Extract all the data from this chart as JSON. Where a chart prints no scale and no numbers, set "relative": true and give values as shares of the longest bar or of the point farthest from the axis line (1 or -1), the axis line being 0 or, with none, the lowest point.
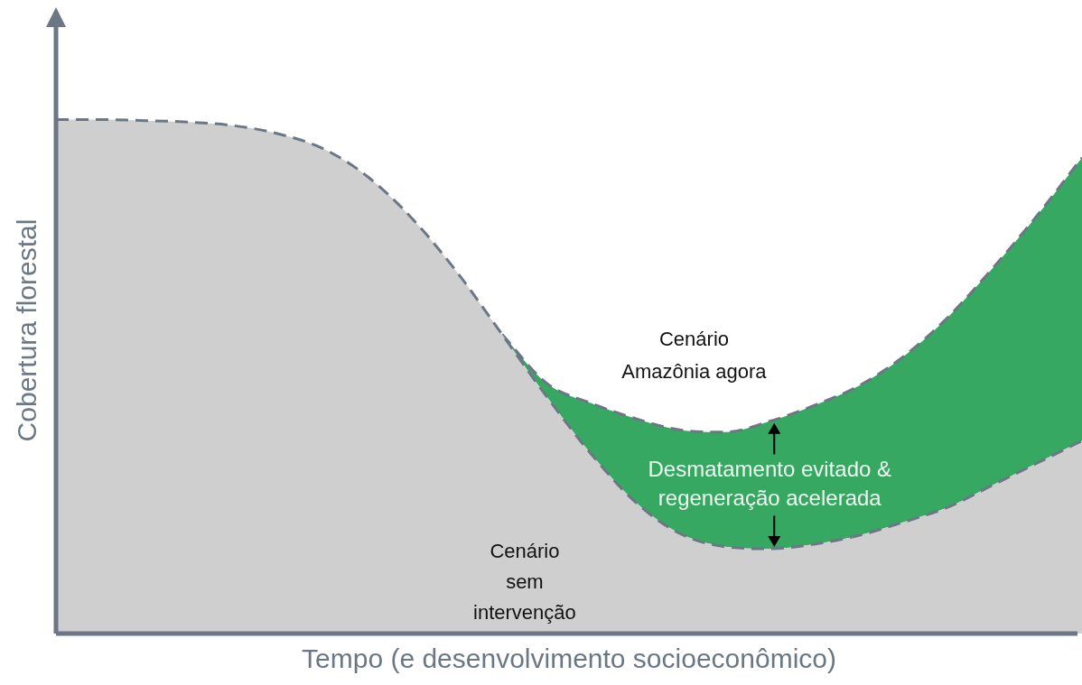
{
  "chart_data": {
    "type": "area",
    "relative": true,
    "xlabel": "Tempo (e desenvolvimento socioeconômico)",
    "ylabel": "Cobertura florestal",
    "categories": [
      null,
      null,
      null,
      null,
      null,
      null,
      null,
      null,
      null,
      null,
      null,
      null,
      null,
      null,
      null,
      null,
      null,
      null,
      null,
      null,
      null,
      null,
      null,
      null
    ],
    "series": [
      {
        "name": "Cenário sem intervenção",
        "type": "area",
        "color": "#cfcfcf",
        "values": [
          1,
          1,
          0.998,
          0.995,
          0.988,
          0.972,
          0.943,
          0.888,
          0.806,
          0.702,
          0.582,
          0.461,
          0.349,
          0.255,
          0.194,
          0.169,
          0.165,
          0.174,
          0.191,
          0.217,
          0.246,
          0.289,
          0.332,
          0.375
        ]
      },
      {
        "name": "Cenário Amazônia agora",
        "type": "area",
        "color": "#36a862",
        "values": [
          null,
          null,
          null,
          null,
          null,
          null,
          null,
          null,
          null,
          null,
          0.582,
          0.487,
          0.448,
          0.418,
          0.396,
          0.392,
          0.413,
          0.444,
          0.482,
          0.539,
          0.616,
          0.711,
          0.814,
          0.926
        ]
      }
    ],
    "annotations": [
      "Desmatamento evitado & regeneração acelerada"
    ],
    "line_style": "dashed",
    "grid": false,
    "legend": false
  }
}
